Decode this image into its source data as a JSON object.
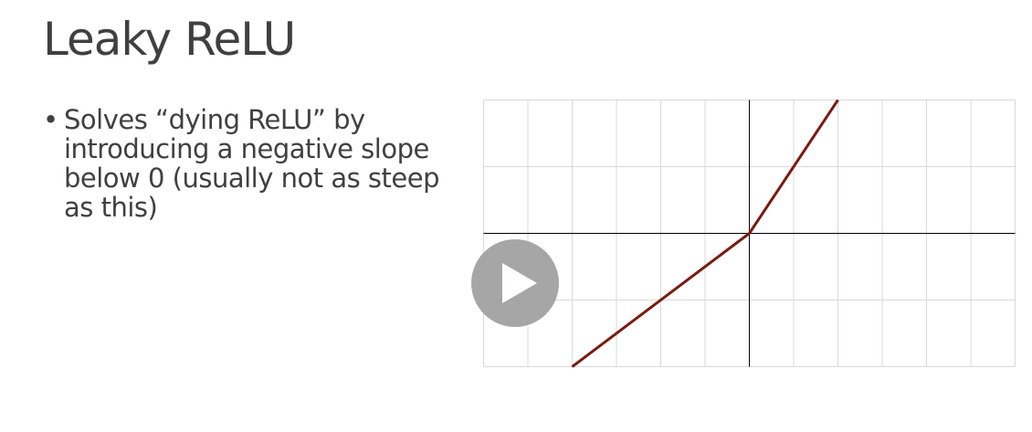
{
  "slide": {
    "title": "Leaky ReLU",
    "bullets": [
      "Solves “dying ReLU” by introducing a negative slope below 0 (usually not as steep as this)"
    ]
  },
  "chart_data": {
    "type": "line",
    "title": "",
    "xlabel": "",
    "ylabel": "",
    "xlim": [
      -6,
      6
    ],
    "ylim": [
      -2,
      2
    ],
    "grid": true,
    "x_gridlines": [
      -6,
      -5,
      -4,
      -3,
      -2,
      -1,
      0,
      1,
      2,
      3,
      4,
      5,
      6
    ],
    "y_gridlines": [
      -2,
      -1,
      0,
      1,
      2
    ],
    "series": [
      {
        "color": "#7b1a12",
        "x": [
          -4,
          0,
          2
        ],
        "y": [
          -2,
          0,
          2
        ]
      }
    ],
    "axis_color": "#000000",
    "grid_color": "#d9d9d9"
  },
  "video": {
    "control_icon": "play-icon",
    "button_color": "#a6a6a6"
  }
}
